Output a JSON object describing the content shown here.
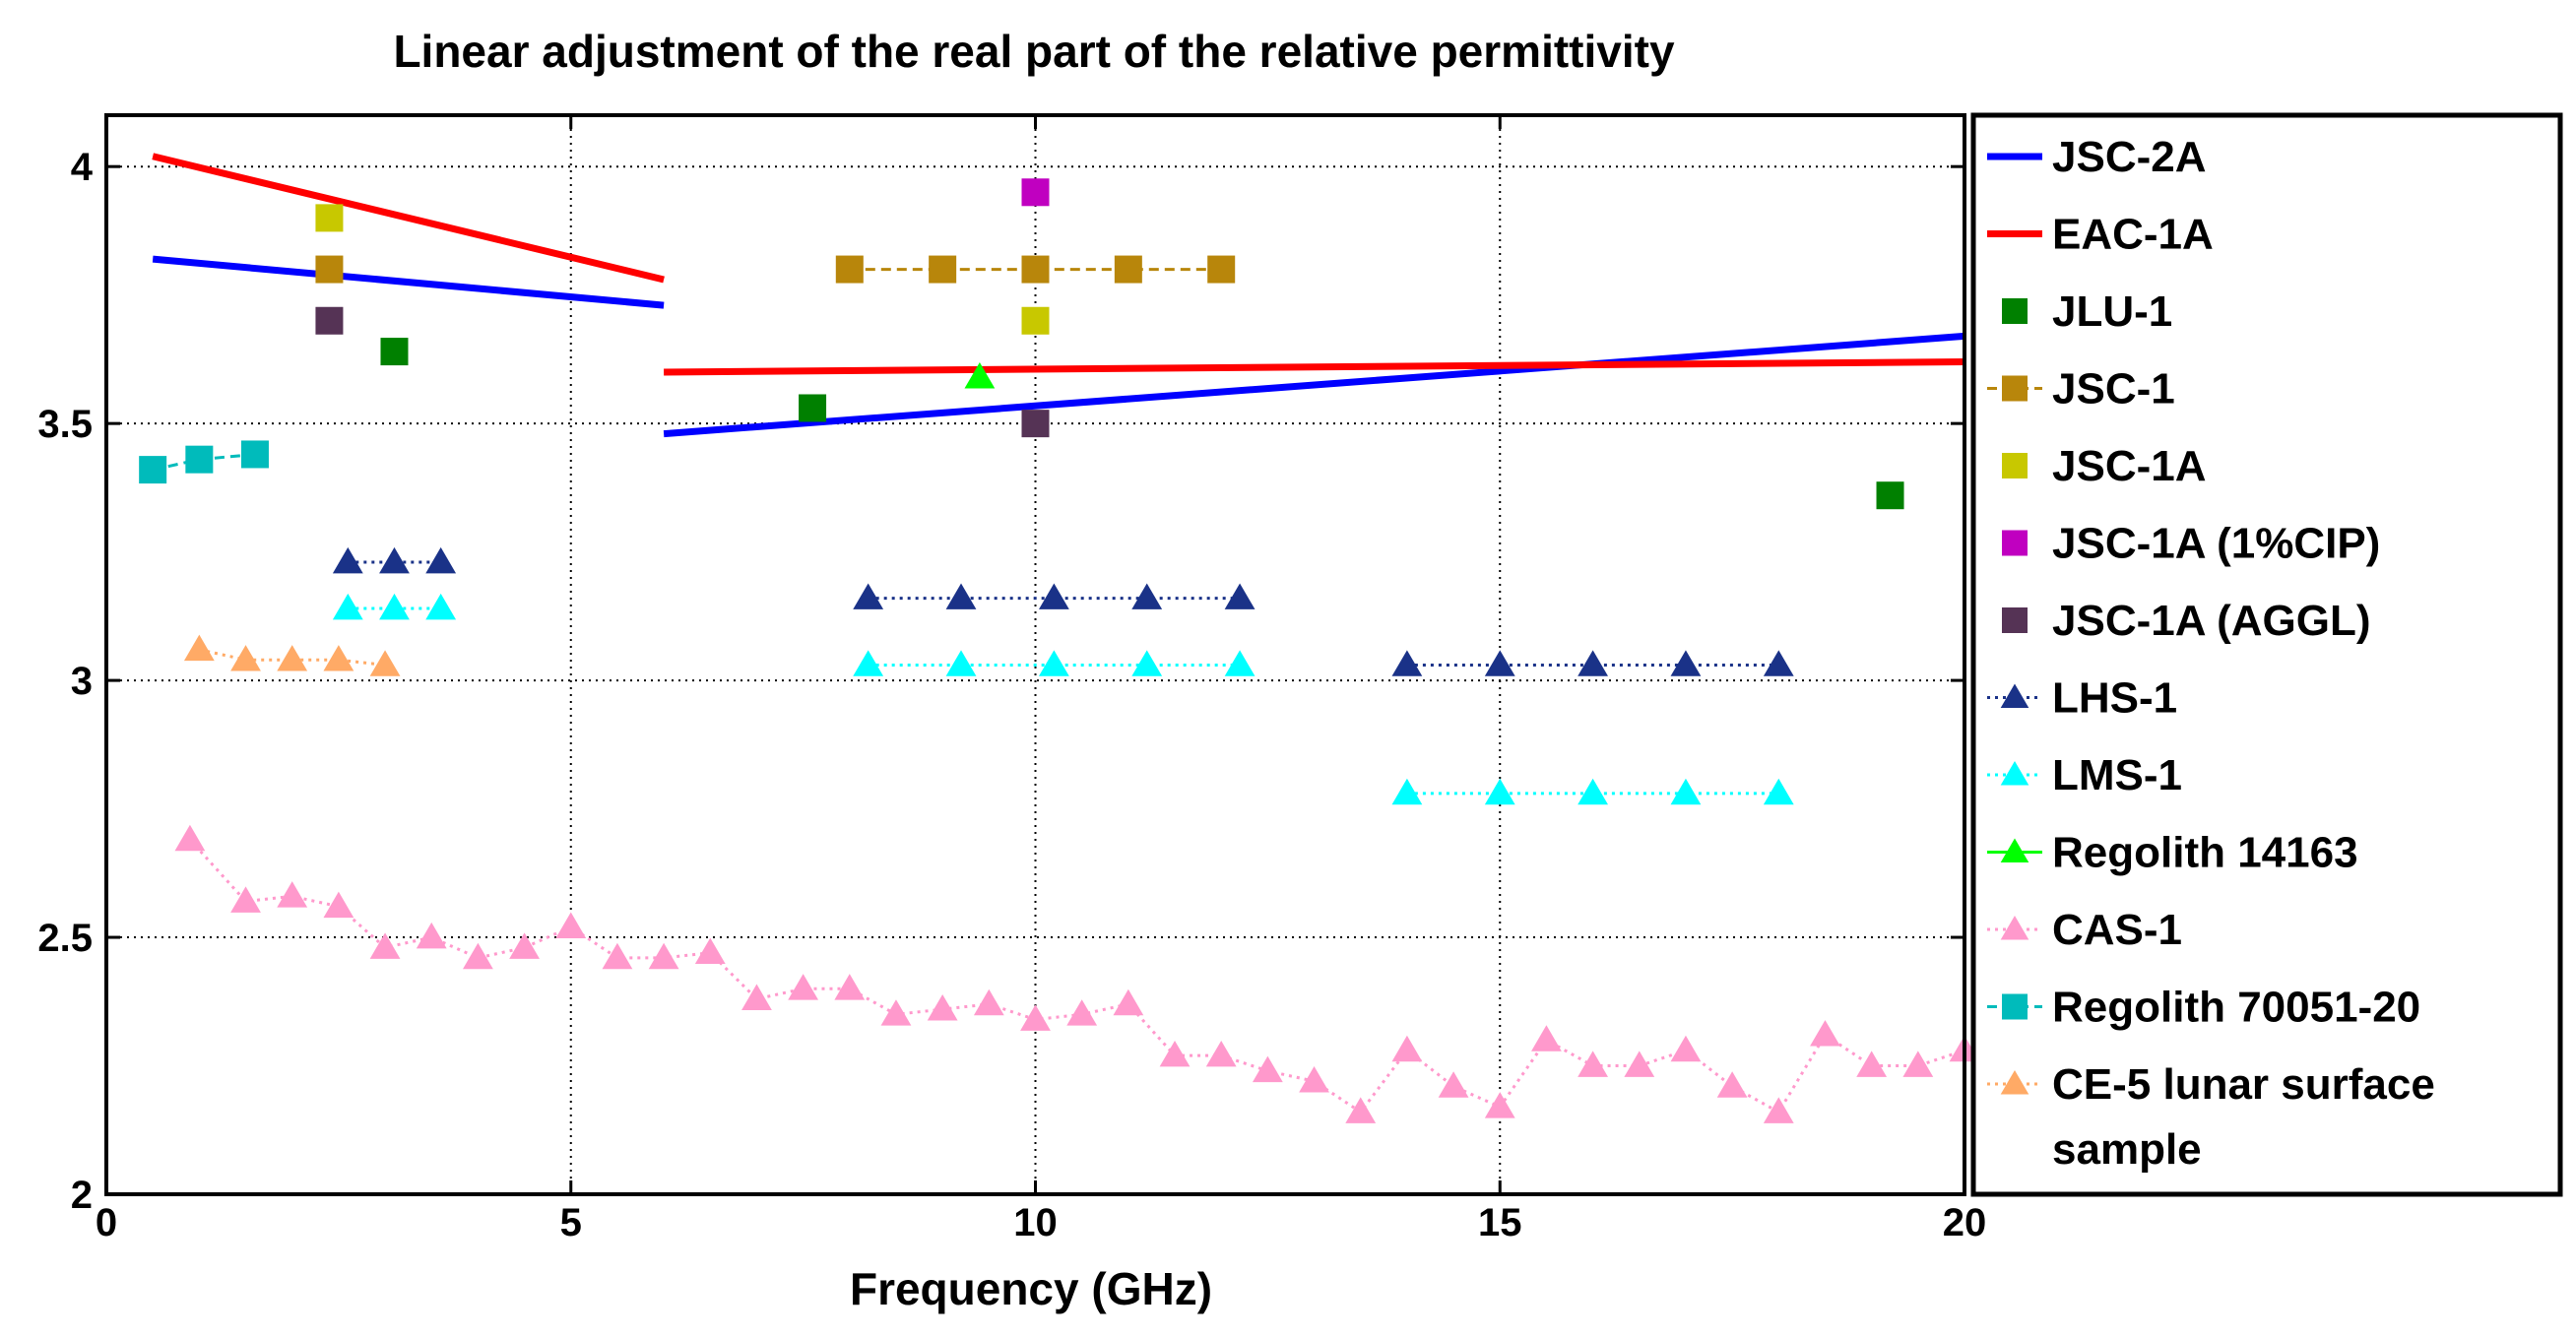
{
  "chart_data": {
    "type": "line",
    "title": "Linear adjustment of the real part of the relative permittivity",
    "xlabel": "Frequency (GHz)",
    "ylabel": "",
    "xlim": [
      0,
      20
    ],
    "ylim": [
      2,
      4.1
    ],
    "x_ticks": [
      0,
      5,
      10,
      15,
      20
    ],
    "x_tick_labels": [
      "0",
      "5",
      "10",
      "15",
      "20"
    ],
    "y_ticks": [
      2,
      2.5,
      3,
      3.5,
      4
    ],
    "y_tick_labels": [
      "2",
      "2.5",
      "3",
      "3.5",
      "4"
    ],
    "grid": true,
    "legend_position": "outside-right",
    "series": [
      {
        "name": "JSC-2A",
        "color": "#0000ff",
        "style": "solid",
        "marker": "none",
        "segments": [
          {
            "x": [
              0.5,
              6
            ],
            "y": [
              3.82,
              3.73
            ]
          },
          {
            "x": [
              6,
              20
            ],
            "y": [
              3.48,
              3.67
            ]
          }
        ]
      },
      {
        "name": "EAC-1A",
        "color": "#ff0000",
        "style": "solid",
        "marker": "none",
        "segments": [
          {
            "x": [
              0.5,
              6
            ],
            "y": [
              4.02,
              3.78
            ]
          },
          {
            "x": [
              6,
              20
            ],
            "y": [
              3.6,
              3.62
            ]
          }
        ]
      },
      {
        "name": "JLU-1",
        "color": "#008000",
        "style": "none",
        "marker": "square",
        "segments": [
          {
            "x": [
              3.1
            ],
            "y": [
              3.64
            ]
          },
          {
            "x": [
              7.6
            ],
            "y": [
              3.53
            ]
          },
          {
            "x": [
              19.2
            ],
            "y": [
              3.36
            ]
          }
        ]
      },
      {
        "name": "JSC-1",
        "color": "#b8860b",
        "style": "dashed",
        "marker": "square",
        "segments": [
          {
            "x": [
              2.4
            ],
            "y": [
              3.8
            ]
          },
          {
            "x": [
              8,
              9,
              10,
              11,
              12
            ],
            "y": [
              3.8,
              3.8,
              3.8,
              3.8,
              3.8
            ]
          }
        ]
      },
      {
        "name": "JSC-1A",
        "color": "#c8c800",
        "style": "none",
        "marker": "square",
        "segments": [
          {
            "x": [
              2.4
            ],
            "y": [
              3.9
            ]
          },
          {
            "x": [
              10
            ],
            "y": [
              3.7
            ]
          }
        ]
      },
      {
        "name": "JSC-1A (1%CIP)",
        "color": "#c000c0",
        "style": "none",
        "marker": "square",
        "segments": [
          {
            "x": [
              10
            ],
            "y": [
              3.95
            ]
          }
        ]
      },
      {
        "name": "JSC-1A (AGGL)",
        "color": "#553355",
        "style": "none",
        "marker": "square",
        "segments": [
          {
            "x": [
              2.4
            ],
            "y": [
              3.7
            ]
          },
          {
            "x": [
              10
            ],
            "y": [
              3.5
            ]
          }
        ]
      },
      {
        "name": "LHS-1",
        "color": "#1a3288",
        "style": "dotted",
        "marker": "triangle",
        "segments": [
          {
            "x": [
              2.6,
              3.1,
              3.6
            ],
            "y": [
              3.23,
              3.23,
              3.23
            ]
          },
          {
            "x": [
              8.2,
              9.2,
              10.2,
              11.2,
              12.2
            ],
            "y": [
              3.16,
              3.16,
              3.16,
              3.16,
              3.16
            ]
          },
          {
            "x": [
              14,
              15,
              16,
              17,
              18
            ],
            "y": [
              3.03,
              3.03,
              3.03,
              3.03,
              3.03
            ]
          }
        ]
      },
      {
        "name": "LMS-1",
        "color": "#00ffff",
        "style": "dotted",
        "marker": "triangle",
        "segments": [
          {
            "x": [
              2.6,
              3.1,
              3.6
            ],
            "y": [
              3.14,
              3.14,
              3.14
            ]
          },
          {
            "x": [
              8.2,
              9.2,
              10.2,
              11.2,
              12.2
            ],
            "y": [
              3.03,
              3.03,
              3.03,
              3.03,
              3.03
            ]
          },
          {
            "x": [
              14,
              15,
              16,
              17,
              18
            ],
            "y": [
              2.78,
              2.78,
              2.78,
              2.78,
              2.78
            ]
          }
        ]
      },
      {
        "name": "Regolith 14163",
        "color": "#00ff00",
        "style": "solid",
        "marker": "triangle",
        "segments": [
          {
            "x": [
              9.4
            ],
            "y": [
              3.59
            ]
          }
        ]
      },
      {
        "name": "CAS-1",
        "color": "#ff99cc",
        "style": "dotted",
        "marker": "triangle",
        "segments": [
          {
            "x": [
              0.9,
              1.5,
              2.0,
              2.5,
              3.0,
              3.5,
              4.0,
              4.5,
              5.0,
              5.5,
              6.0,
              6.5,
              7.0,
              7.5,
              8.0,
              8.5,
              9.0,
              9.5,
              10.0,
              10.5,
              11.0,
              11.5,
              12.0,
              12.5,
              13.0,
              13.5,
              14.0,
              14.5,
              15.0,
              15.5,
              16.0,
              16.5,
              17.0,
              17.5,
              18.0,
              18.5,
              19.0,
              19.5,
              20.0
            ],
            "y": [
              2.69,
              2.57,
              2.58,
              2.56,
              2.48,
              2.5,
              2.46,
              2.48,
              2.52,
              2.46,
              2.46,
              2.47,
              2.38,
              2.4,
              2.4,
              2.35,
              2.36,
              2.37,
              2.34,
              2.35,
              2.37,
              2.27,
              2.27,
              2.24,
              2.22,
              2.16,
              2.28,
              2.21,
              2.17,
              2.3,
              2.25,
              2.25,
              2.28,
              2.21,
              2.16,
              2.31,
              2.25,
              2.25,
              2.28
            ]
          }
        ]
      },
      {
        "name": "Regolith 70051-20",
        "color": "#00bbbb",
        "style": "dashed",
        "marker": "square",
        "segments": [
          {
            "x": [
              0.5,
              1.0,
              1.6
            ],
            "y": [
              3.41,
              3.43,
              3.44
            ]
          }
        ]
      },
      {
        "name": "CE-5 lunar surface sample",
        "color": "#ffaa66",
        "style": "dotted",
        "marker": "triangle",
        "legend_lines": [
          "CE-5 lunar surface",
          "sample"
        ],
        "segments": [
          {
            "x": [
              1.0,
              1.5,
              2.0,
              2.5,
              3.0
            ],
            "y": [
              3.06,
              3.04,
              3.04,
              3.04,
              3.03
            ]
          }
        ]
      }
    ]
  }
}
